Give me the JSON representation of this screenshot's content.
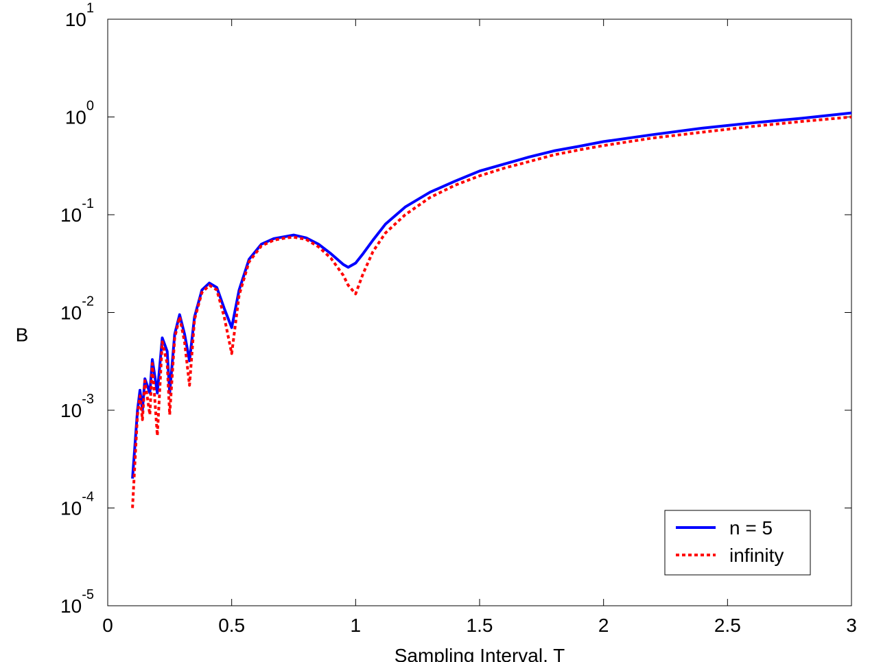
{
  "chart_data": {
    "type": "line",
    "xlabel": "Sampling Interval, T",
    "ylabel": "B",
    "log_y": true,
    "grid": false,
    "legend": "lower right",
    "xlim": [
      0,
      3
    ],
    "ylim": [
      1e-05,
      10
    ],
    "xticks": [
      0,
      0.5,
      1,
      1.5,
      2,
      2.5,
      3
    ],
    "yticks": [
      {
        "value": 1e-05,
        "label": "10",
        "exponent": "-5"
      },
      {
        "value": 0.0001,
        "label": "10",
        "exponent": "-4"
      },
      {
        "value": 0.001,
        "label": "10",
        "exponent": "-3"
      },
      {
        "value": 0.01,
        "label": "10",
        "exponent": "-2"
      },
      {
        "value": 0.1,
        "label": "10",
        "exponent": "-1"
      },
      {
        "value": 1,
        "label": "10",
        "exponent": "0"
      },
      {
        "value": 10,
        "label": "10",
        "exponent": "1"
      }
    ],
    "x": [
      0.1,
      0.12,
      0.13,
      0.14,
      0.15,
      0.17,
      0.18,
      0.2,
      0.22,
      0.24,
      0.25,
      0.27,
      0.29,
      0.31,
      0.33,
      0.35,
      0.38,
      0.41,
      0.44,
      0.47,
      0.5,
      0.53,
      0.57,
      0.62,
      0.67,
      0.72,
      0.75,
      0.8,
      0.85,
      0.9,
      0.95,
      0.97,
      1.0,
      1.03,
      1.07,
      1.12,
      1.2,
      1.3,
      1.4,
      1.5,
      1.6,
      1.7,
      1.8,
      1.9,
      2.0,
      2.2,
      2.4,
      2.6,
      2.8,
      3.0
    ],
    "series": [
      {
        "name": "n = 5",
        "color": "#0000ff",
        "dash": false,
        "values": [
          0.0002,
          0.001,
          0.0016,
          0.001,
          0.0021,
          0.0015,
          0.0033,
          0.0015,
          0.0055,
          0.004,
          0.0015,
          0.006,
          0.0095,
          0.006,
          0.0032,
          0.009,
          0.017,
          0.02,
          0.018,
          0.011,
          0.007,
          0.017,
          0.035,
          0.05,
          0.057,
          0.06,
          0.062,
          0.058,
          0.05,
          0.04,
          0.031,
          0.029,
          0.032,
          0.04,
          0.055,
          0.08,
          0.12,
          0.17,
          0.22,
          0.28,
          0.33,
          0.39,
          0.45,
          0.5,
          0.56,
          0.66,
          0.77,
          0.87,
          0.97,
          1.1
        ]
      },
      {
        "name": "infinity",
        "color": "#ff0000",
        "dash": true,
        "values": [
          0.0001,
          0.0009,
          0.0014,
          0.0008,
          0.002,
          0.0009,
          0.003,
          0.00055,
          0.005,
          0.003,
          0.0009,
          0.0055,
          0.009,
          0.005,
          0.0018,
          0.0085,
          0.016,
          0.019,
          0.017,
          0.009,
          0.0038,
          0.015,
          0.033,
          0.048,
          0.055,
          0.058,
          0.059,
          0.056,
          0.047,
          0.036,
          0.024,
          0.019,
          0.0155,
          0.025,
          0.042,
          0.065,
          0.1,
          0.15,
          0.2,
          0.25,
          0.3,
          0.35,
          0.41,
          0.46,
          0.51,
          0.61,
          0.7,
          0.8,
          0.9,
          1.0
        ]
      }
    ]
  }
}
